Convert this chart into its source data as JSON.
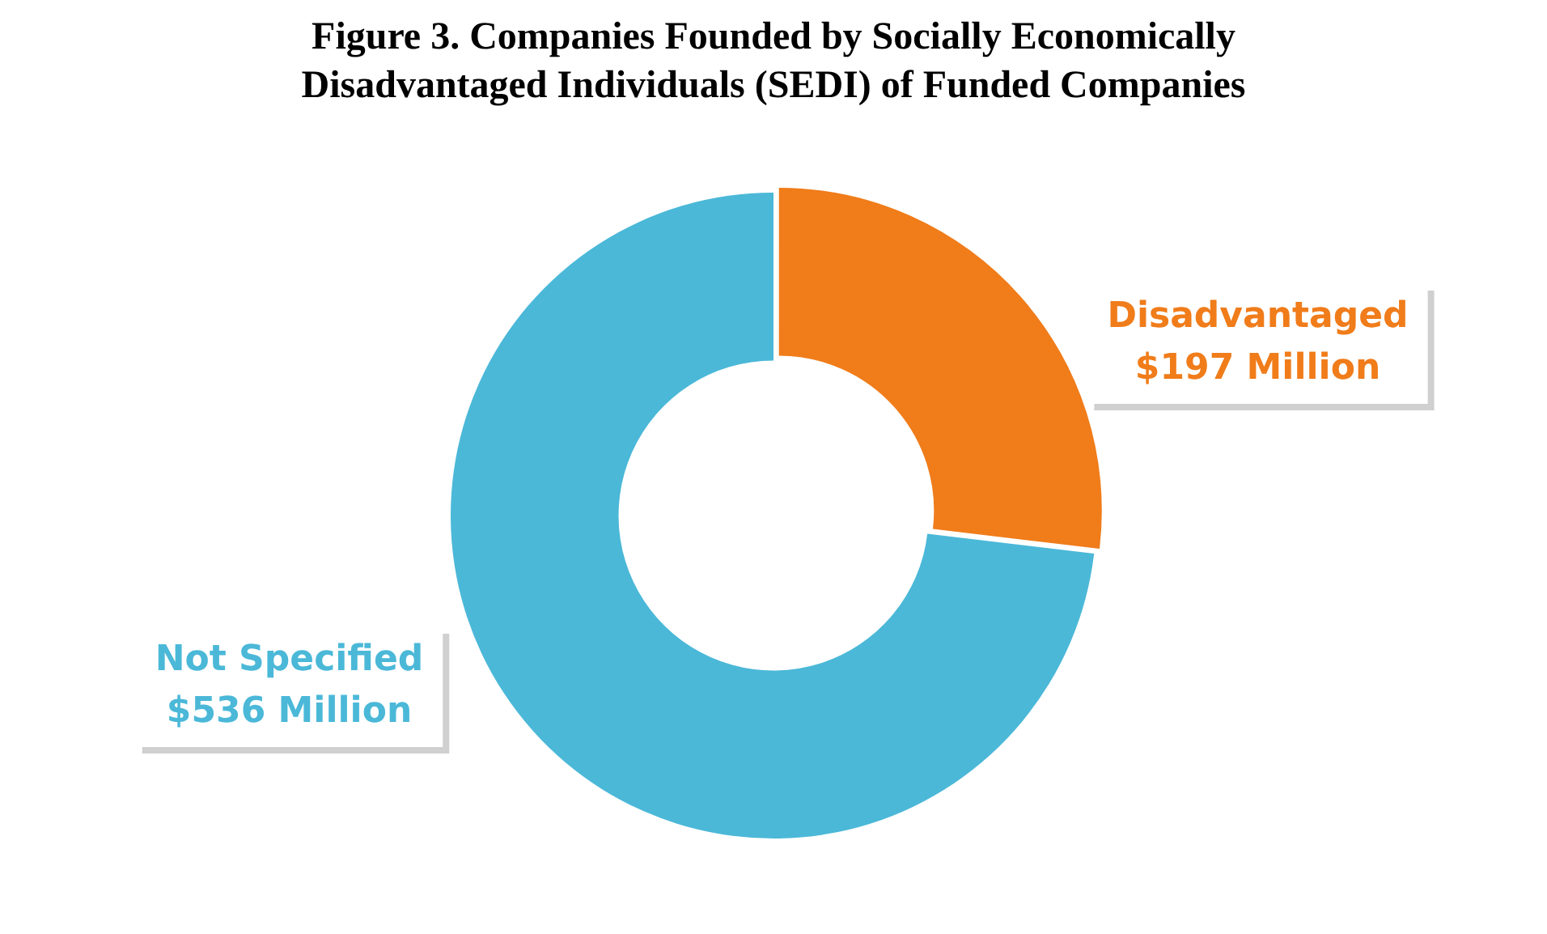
{
  "chart_data": {
    "type": "donut",
    "title": "Figure 3. Companies Founded by Socially Economically Disadvantaged Individuals (SEDI) of Funded Companies",
    "categories": [
      "Disadvantaged",
      "Not Specified"
    ],
    "values": [
      197,
      536
    ],
    "value_labels": [
      "$197 Million",
      "$536 Million"
    ],
    "colors": [
      "#f07c1a",
      "#4bb8d8"
    ],
    "legend": false
  }
}
